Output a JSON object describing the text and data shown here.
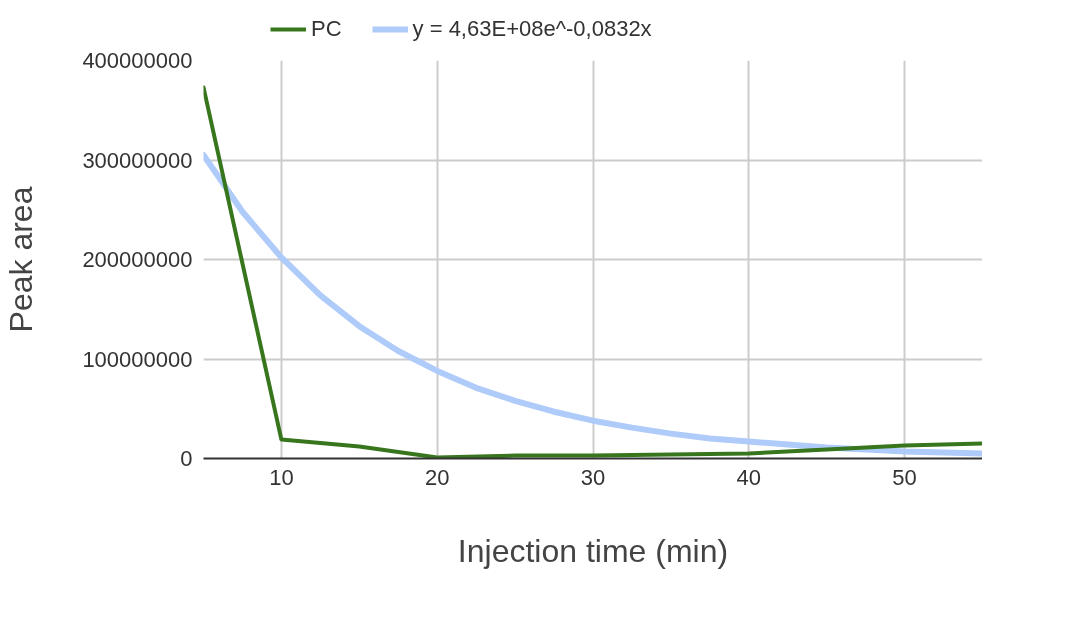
{
  "chart_data": {
    "type": "line",
    "xlabel": "Injection time (min)",
    "ylabel": "Peak area",
    "xlim": [
      5,
      55
    ],
    "xticks": [
      10,
      20,
      30,
      40,
      50
    ],
    "ylim": [
      0,
      400000000
    ],
    "yticks": [
      0,
      100000000,
      200000000,
      300000000,
      400000000
    ],
    "grid": true,
    "legend": "top",
    "line_style": "solid",
    "marker": "none",
    "x": [
      5,
      10,
      15,
      20,
      25,
      30,
      35,
      40,
      45,
      50,
      55
    ],
    "series": [
      {
        "name": "PC",
        "color": "#38761d",
        "values": [
          373000000,
          19000000,
          12000000,
          1000000,
          3000000,
          3000000,
          4000000,
          5000000,
          9000000,
          13000000,
          15000000
        ]
      },
      {
        "name": "y = 4,63E+08e^-0,0832x",
        "color": "#aecbfa",
        "type": "line",
        "x": [
          5,
          7.5,
          10,
          12.5,
          15,
          17.5,
          20,
          22.5,
          25,
          27.5,
          30,
          32.5,
          35,
          37.5,
          40,
          42.5,
          45,
          47.5,
          50,
          52.5,
          55
        ],
        "values": [
          305000000,
          248000000,
          202000000,
          164000000,
          133000000,
          108000000,
          88000000,
          71000000,
          58000000,
          47000000,
          38000000,
          31000000,
          25000000,
          20000000,
          17000000,
          14000000,
          11000000,
          9000000,
          7000000,
          6000000,
          5000000
        ]
      }
    ]
  }
}
